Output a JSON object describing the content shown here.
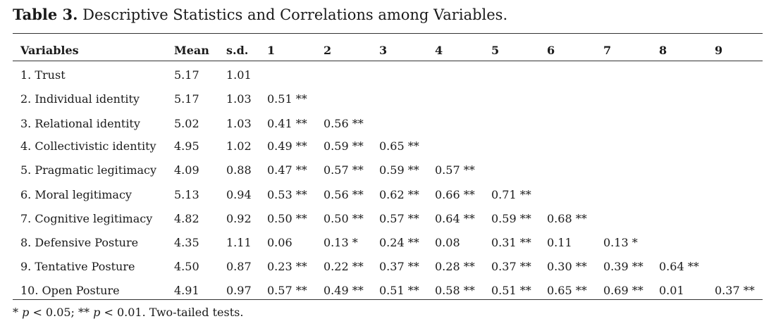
{
  "title": {
    "label": "Table 3.",
    "text": "Descriptive Statistics and Correlations among Variables."
  },
  "table": {
    "headers": [
      "Variables",
      "Mean",
      "s.d.",
      "1",
      "2",
      "3",
      "4",
      "5",
      "6",
      "7",
      "8",
      "9"
    ],
    "rows": [
      {
        "variable": "1. Trust",
        "mean": "5.17",
        "sd": "1.01",
        "corr": []
      },
      {
        "variable": "2. Individual identity",
        "mean": "5.17",
        "sd": "1.03",
        "corr": [
          "0.51 **"
        ]
      },
      {
        "variable": "3. Relational identity",
        "mean": "5.02",
        "sd": "1.03",
        "corr": [
          "0.41 **",
          "0.56 **"
        ]
      },
      {
        "variable": "4. Collectivistic identity",
        "mean": "4.95",
        "sd": "1.02",
        "corr": [
          "0.49 **",
          "0.59 **",
          "0.65 **"
        ]
      },
      {
        "variable": "5. Pragmatic legitimacy",
        "mean": "4.09",
        "sd": "0.88",
        "corr": [
          "0.47 **",
          "0.57 **",
          "0.59 **",
          "0.57 **"
        ]
      },
      {
        "variable": "6. Moral legitimacy",
        "mean": "5.13",
        "sd": "0.94",
        "corr": [
          "0.53 **",
          "0.56 **",
          "0.62 **",
          "0.66 **",
          "0.71 **"
        ]
      },
      {
        "variable": "7. Cognitive legitimacy",
        "mean": "4.82",
        "sd": "0.92",
        "corr": [
          "0.50 **",
          "0.50 **",
          "0.57 **",
          "0.64 **",
          "0.59 **",
          "0.68 **"
        ]
      },
      {
        "variable": "8. Defensive Posture",
        "mean": "4.35",
        "sd": "1.11",
        "corr": [
          "0.06",
          "0.13 *",
          "0.24 **",
          "0.08",
          "0.31 **",
          "0.11",
          "0.13 *"
        ]
      },
      {
        "variable": "9. Tentative Posture",
        "mean": "4.50",
        "sd": "0.87",
        "corr": [
          "0.23 **",
          "0.22 **",
          "0.37 **",
          "0.28 **",
          "0.37 **",
          "0.30 **",
          "0.39 **",
          "0.64 **"
        ]
      },
      {
        "variable": "10. Open Posture",
        "mean": "4.91",
        "sd": "0.97",
        "corr": [
          "0.57 **",
          "0.49 **",
          "0.51 **",
          "0.58 **",
          "0.51 **",
          "0.65 **",
          "0.69 **",
          "0.01",
          "0.37 **"
        ]
      }
    ]
  },
  "note": {
    "star1": "*",
    "p1": "p",
    "text1": "< 0.05; **",
    "p2": "p",
    "text2": "< 0.01. Two-tailed tests."
  }
}
